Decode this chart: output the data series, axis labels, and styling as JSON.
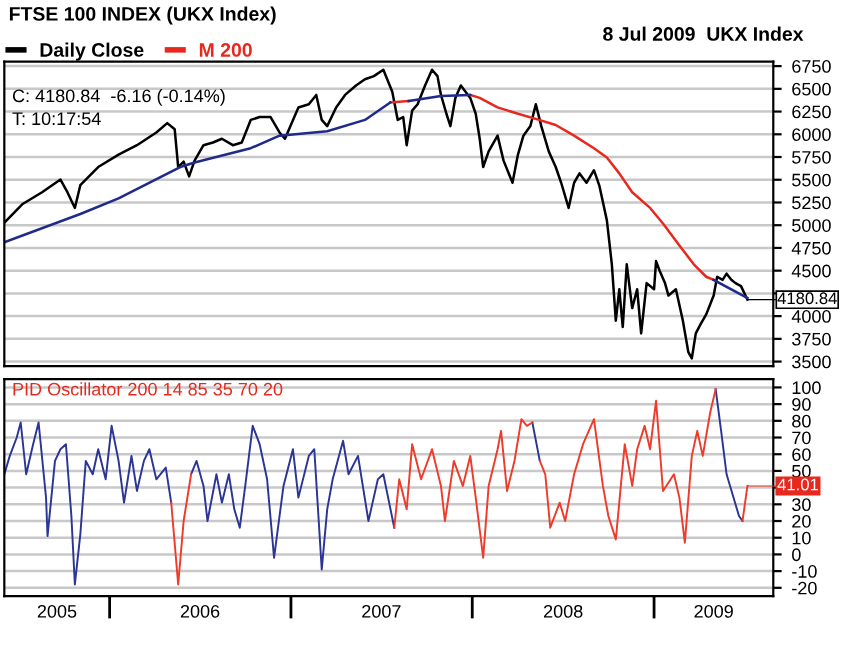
{
  "chart_data": [
    {
      "type": "line",
      "title": "FTSE 100 INDEX (UKX Index)",
      "subtitle": "8 Jul 2009  UKX Index",
      "legend": "top left",
      "grid": "y",
      "tick_labels": "y",
      "xlim": [
        "2005-06-03",
        "2009-08-29"
      ],
      "ylim": [
        3450,
        6800
      ],
      "yticks": [
        3500,
        3750,
        4000,
        {
          "value": 4250,
          "label": null
        },
        4500,
        4750,
        5000,
        5250,
        5500,
        5750,
        6000,
        6250,
        6500,
        6750
      ],
      "annotations": [
        "C: 4180.84  -6.16 (-0.14%)",
        "T: 10:17:54",
        {
          "text": "4180.84",
          "x": "2009-07-08",
          "y": 4181
        }
      ],
      "series": [
        {
          "name": "Daily Close",
          "color": "#000000",
          "x": [
            "2005-06-03",
            "2005-07-09",
            "2005-08-18",
            "2005-09-24",
            "2005-10-08",
            "2005-10-23",
            "2005-11-03",
            "2005-12-09",
            "2006-01-19",
            "2006-02-25",
            "2006-04-05",
            "2006-04-27",
            "2006-05-12",
            "2006-05-19",
            "2006-05-30",
            "2006-06-10",
            "2006-06-21",
            "2006-07-09",
            "2006-07-28",
            "2006-08-15",
            "2006-09-06",
            "2006-09-24",
            "2006-10-12",
            "2006-10-30",
            "2006-11-21",
            "2006-12-09",
            "2006-12-20",
            "2007-01-16",
            "2007-02-06",
            "2007-02-21",
            "2007-03-04",
            "2007-03-15",
            "2007-04-02",
            "2007-04-20",
            "2007-05-12",
            "2007-05-30",
            "2007-06-17",
            "2007-07-06",
            "2007-07-24",
            "2007-08-04",
            "2007-08-15",
            "2007-08-22",
            "2007-09-02",
            "2007-09-13",
            "2007-09-28",
            "2007-10-12",
            "2007-10-23",
            "2007-10-30",
            "2007-11-10",
            "2007-11-18",
            "2007-11-28",
            "2007-12-09",
            "2007-12-28",
            "2008-01-08",
            "2008-01-16",
            "2008-01-23",
            "2008-02-03",
            "2008-02-21",
            "2008-03-04",
            "2008-03-22",
            "2008-04-02",
            "2008-04-13",
            "2008-04-27",
            "2008-05-08",
            "2008-05-19",
            "2008-06-03",
            "2008-06-17",
            "2008-06-28",
            "2008-07-13",
            "2008-07-24",
            "2008-08-04",
            "2008-08-18",
            "2008-09-02",
            "2008-09-13",
            "2008-09-28",
            "2008-10-08",
            "2008-10-16",
            "2008-10-23",
            "2008-10-30",
            "2008-11-07",
            "2008-11-18",
            "2008-11-28",
            "2008-12-06",
            "2008-12-17",
            "2009-01-01",
            "2009-01-05",
            "2009-01-12",
            "2009-01-23",
            "2009-01-30",
            "2009-02-14",
            "2009-02-28",
            "2009-03-11",
            "2009-03-18",
            "2009-03-26",
            "2009-04-05",
            "2009-04-16",
            "2009-05-01",
            "2009-05-08",
            "2009-05-19",
            "2009-05-27",
            "2009-06-06",
            "2009-06-14",
            "2009-06-25",
            "2009-07-08"
          ],
          "values": [
            5026,
            5230,
            5363,
            5502,
            5363,
            5190,
            5440,
            5640,
            5777,
            5880,
            6020,
            6123,
            6055,
            5640,
            5700,
            5537,
            5710,
            5880,
            5910,
            5951,
            5880,
            5910,
            6158,
            6190,
            6190,
            6020,
            5951,
            6295,
            6330,
            6433,
            6158,
            6090,
            6295,
            6433,
            6537,
            6605,
            6640,
            6710,
            6468,
            6158,
            6190,
            5880,
            6260,
            6330,
            6537,
            6710,
            6640,
            6433,
            6226,
            6090,
            6400,
            6537,
            6400,
            6226,
            5951,
            5640,
            5812,
            5985,
            5710,
            5467,
            5777,
            5985,
            6090,
            6330,
            6090,
            5812,
            5640,
            5467,
            5190,
            5467,
            5570,
            5467,
            5605,
            5432,
            5053,
            4570,
            3950,
            4295,
            3880,
            4570,
            4088,
            4295,
            3810,
            4363,
            4295,
            4605,
            4502,
            4363,
            4226,
            4295,
            3950,
            3604,
            3535,
            3810,
            3915,
            4019,
            4226,
            4433,
            4398,
            4467,
            4398,
            4363,
            4330,
            4181
          ]
        },
        {
          "name": "M 200",
          "color": "#e8281e",
          "x": [
            "2007-07-20",
            "2007-08-26",
            "2007-10-19",
            "2007-12-28",
            "2008-01-16",
            "2008-02-21",
            "2008-04-02",
            "2008-05-08",
            "2008-06-17",
            "2008-07-24",
            "2008-09-02",
            "2008-09-28",
            "2008-10-23",
            "2008-11-18",
            "2008-12-24",
            "2009-01-19",
            "2009-02-21",
            "2009-03-22",
            "2009-04-16",
            "2009-05-01"
          ],
          "values": [
            6350,
            6365,
            null,
            6433,
            6400,
            6296,
            6226,
            6170,
            6102,
            5985,
            5847,
            5744,
            5570,
            5363,
            5190,
            5019,
            4777,
            4570,
            4433,
            4398
          ]
        },
        {
          "color": "#1f2a8c",
          "x": [
            "2005-06-03",
            "2005-11-03",
            "2006-01-19",
            "2006-05-23",
            "2006-06-21",
            "2006-10-12",
            "2006-12-09",
            "2007-03-15",
            "2007-05-30",
            "2007-07-20",
            "2007-08-07",
            "2007-08-26",
            "2007-10-30",
            "2007-12-28",
            "2008-07-02",
            "2009-05-01",
            "2009-07-08"
          ],
          "values": [
            4812,
            5123,
            5295,
            5640,
            5690,
            5847,
            5985,
            6033,
            6158,
            6350,
            null,
            6365,
            6420,
            6433,
            null,
            4398,
            4200
          ]
        }
      ]
    },
    {
      "type": "line",
      "title": "PID Oscillator 200 14 85 35 70 20",
      "grid": "y",
      "xlim": [
        "2005-06-03",
        "2009-08-29"
      ],
      "ylim": [
        -25,
        105
      ],
      "yticks": [
        -20,
        -10,
        0,
        10,
        20,
        30,
        {
          "value": 40,
          "label": null
        },
        50,
        60,
        70,
        80,
        90,
        100
      ],
      "xticks": [
        {
          "value": "2005-09-17",
          "label": "2005"
        },
        {
          "value": "2006-01-01",
          "label": null
        },
        {
          "value": "2006-07-02",
          "label": "2006"
        },
        {
          "value": "2007-01-01",
          "label": null
        },
        {
          "value": "2007-07-02",
          "label": "2007"
        },
        {
          "value": "2008-01-01",
          "label": null
        },
        {
          "value": "2008-07-02",
          "label": "2008"
        },
        {
          "value": "2009-01-01",
          "label": null
        },
        {
          "value": "2009-05-01",
          "label": "2009"
        }
      ],
      "annotations": [
        {
          "text": "41.01",
          "x": "2009-07-08",
          "y": 41
        }
      ],
      "series": [
        {
          "color": "#2b3595",
          "x": [
            "2005-06-03",
            "2005-06-14",
            "2005-06-28",
            "2005-07-06",
            "2005-07-17",
            "2005-07-31",
            "2005-08-11",
            "2005-08-26",
            "2005-08-29",
            "2005-09-13",
            "2005-09-24",
            "2005-10-05",
            "2005-10-16",
            "2005-10-23",
            "2005-11-03",
            "2005-11-14",
            "2005-11-28",
            "2005-12-09",
            "2005-12-24",
            "2006-01-05",
            "2006-01-19",
            "2006-01-30",
            "2006-02-14",
            "2006-02-25",
            "2006-03-11",
            "2006-03-22",
            "2006-04-05",
            "2006-04-24",
            "2006-05-05",
            "2006-05-27",
            "2006-06-14",
            "2006-06-25",
            "2006-07-09",
            "2006-07-17",
            "2006-08-04",
            "2006-08-15",
            "2006-08-29",
            "2006-09-09",
            "2006-09-20",
            "2006-10-01",
            "2006-10-16",
            "2006-10-30",
            "2006-11-14",
            "2006-11-28",
            "2006-12-17",
            "2007-01-05",
            "2007-01-16",
            "2007-02-06",
            "2007-02-17",
            "2007-03-04",
            "2007-03-15",
            "2007-03-26",
            "2007-04-16",
            "2007-04-27",
            "2007-05-16",
            "2007-06-06",
            "2007-06-25",
            "2007-07-06",
            "2007-07-28",
            "2008-01-01",
            "2008-05-01",
            "2008-05-16",
            "2008-09-13",
            "2009-05-05",
            "2009-05-16",
            "2009-05-27",
            "2009-06-06",
            "2009-06-21",
            "2009-06-28"
          ],
          "values": [
            48,
            59,
            70,
            79,
            48,
            66,
            79,
            34,
            11,
            56,
            63,
            66,
            23,
            -18,
            12,
            56,
            48,
            63,
            45,
            77,
            56,
            31,
            59,
            38,
            56,
            63,
            45,
            52,
            31,
            null,
            48,
            56,
            41,
            20,
            48,
            31,
            48,
            27,
            16,
            41,
            77,
            66,
            45,
            -2,
            41,
            63,
            34,
            59,
            63,
            -9,
            27,
            45,
            68,
            48,
            59,
            20,
            45,
            48,
            16,
            null,
            79,
            56,
            null,
            99,
            74,
            48,
            38,
            23,
            20
          ]
        },
        {
          "color": "#ee3b2b",
          "x": [
            "2006-05-05",
            "2006-05-19",
            "2006-05-30",
            "2006-06-14",
            "2006-07-02",
            "2007-07-28",
            "2007-08-07",
            "2007-08-22",
            "2007-09-02",
            "2007-09-20",
            "2007-10-12",
            "2007-10-30",
            "2007-11-07",
            "2007-11-25",
            "2007-12-13",
            "2007-12-28",
            "2008-01-08",
            "2008-01-23",
            "2008-02-03",
            "2008-02-21",
            "2008-02-28",
            "2008-03-11",
            "2008-03-26",
            "2008-04-09",
            "2008-04-20",
            "2008-05-01",
            "2008-05-08",
            "2008-05-16",
            "2008-05-27",
            "2008-06-06",
            "2008-06-25",
            "2008-07-06",
            "2008-07-24",
            "2008-08-11",
            "2008-09-02",
            "2008-09-20",
            "2008-10-01",
            "2008-10-16",
            "2008-11-03",
            "2008-11-18",
            "2008-11-28",
            "2008-12-13",
            "2008-12-24",
            "2009-01-05",
            "2009-01-19",
            "2009-02-10",
            "2009-02-21",
            "2009-03-04",
            "2009-03-18",
            "2009-03-29",
            "2009-04-09",
            "2009-04-24",
            "2009-05-05",
            "2009-05-27",
            "2009-06-28",
            "2009-07-08"
          ],
          "values": [
            31,
            -18,
            20,
            48,
            null,
            16,
            45,
            27,
            66,
            45,
            63,
            41,
            20,
            56,
            41,
            59,
            34,
            -2,
            41,
            63,
            74,
            38,
            56,
            81,
            77,
            79,
            null,
            56,
            48,
            16,
            31,
            20,
            48,
            66,
            81,
            41,
            23,
            9,
            66,
            41,
            63,
            77,
            63,
            92,
            38,
            48,
            34,
            7,
            59,
            74,
            59,
            85,
            99,
            null,
            20,
            41
          ]
        }
      ]
    }
  ]
}
